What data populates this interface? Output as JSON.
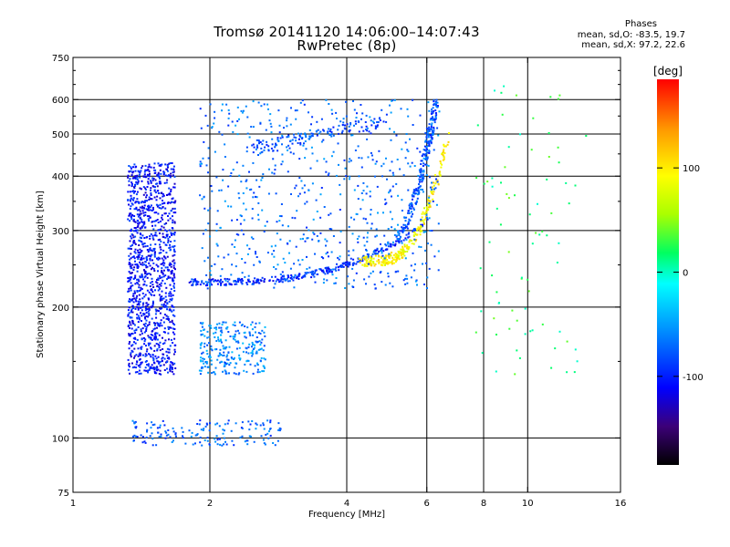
{
  "header": {
    "title_line1": "Tromsø 20141120 14:06:00–14:07:43",
    "title_line2": "RwPretec (8p)",
    "phases_title": "Phases",
    "phases_o": "mean, sd,O:  -83.5, 19.7",
    "phases_x": "mean, sd,X:  97.2, 22.6"
  },
  "colorbar": {
    "label": "[deg]",
    "ticks": [
      {
        "value": 100,
        "label": "100"
      },
      {
        "value": 0,
        "label": "0"
      },
      {
        "value": -100,
        "label": "-100"
      }
    ],
    "range": [
      -185,
      185
    ]
  },
  "chart_data": {
    "type": "scatter",
    "xlabel": "Frequency [MHz]",
    "ylabel": "Stationary phase Virtual Height [km]",
    "xscale": "log",
    "yscale": "log",
    "xlim": [
      1,
      16
    ],
    "ylim": [
      75,
      750
    ],
    "xticks": [
      1,
      2,
      4,
      6,
      8,
      10,
      16
    ],
    "xtick_labels": [
      "1",
      "2",
      "4",
      "6",
      "8",
      "10",
      "16"
    ],
    "yticks": [
      75,
      100,
      200,
      300,
      400,
      500,
      600,
      750
    ],
    "ytick_labels": [
      "75",
      "100",
      "200",
      "300",
      "400",
      "500",
      "600",
      "750"
    ],
    "grid": true,
    "grid_x": [
      2,
      4,
      6,
      8,
      10
    ],
    "grid_y": [
      100,
      200,
      300,
      400,
      500,
      600
    ],
    "color_variable": "phase [deg]",
    "colormap": "rainbow",
    "clusters": [
      {
        "comment": "O-mode F trace lower branch",
        "fmin": 1.8,
        "fmax": 5.9,
        "hmin": 225,
        "hmax": 300,
        "phase": -95,
        "n": 320,
        "kind": "trace_lower"
      },
      {
        "comment": "X-mode F trace",
        "fmin": 4.3,
        "fmax": 6.7,
        "hmin": 255,
        "hmax": 500,
        "phase": 95,
        "n": 260,
        "kind": "trace_x"
      },
      {
        "comment": "O-mode upper branch to cusp",
        "fmin": 4.9,
        "fmax": 6.3,
        "hmin": 280,
        "hmax": 600,
        "phase": -80,
        "n": 240,
        "kind": "trace_upper"
      },
      {
        "comment": "Sporadic/multipath echoes",
        "fmin": 1.9,
        "fmax": 6.4,
        "hmin": 220,
        "hmax": 600,
        "phase": -70,
        "n": 650,
        "kind": "cloud"
      },
      {
        "comment": "Spread F near 1.4-1.6 MHz",
        "fmin": 1.32,
        "fmax": 1.68,
        "hmin": 140,
        "hmax": 430,
        "phase": -105,
        "n": 1200,
        "kind": "cloud"
      },
      {
        "comment": "Low blob near 2.0-2.6 MHz",
        "fmin": 1.9,
        "fmax": 2.65,
        "hmin": 140,
        "hmax": 185,
        "phase": -60,
        "n": 260,
        "kind": "cloud"
      },
      {
        "comment": "E-region echoes",
        "fmin": 1.35,
        "fmax": 2.9,
        "hmin": 96,
        "hmax": 110,
        "phase": -75,
        "n": 160,
        "kind": "cloud"
      },
      {
        "comment": "Upper band 2-4.8 MHz",
        "fmin": 2.4,
        "fmax": 4.9,
        "hmin": 440,
        "hmax": 560,
        "phase": -80,
        "n": 140,
        "kind": "band"
      },
      {
        "comment": "Scattered high freq echoes",
        "fmin": 7.7,
        "fmax": 13.5,
        "hmin": 140,
        "hmax": 650,
        "phase": 20,
        "n": 80,
        "kind": "cloud"
      }
    ]
  }
}
